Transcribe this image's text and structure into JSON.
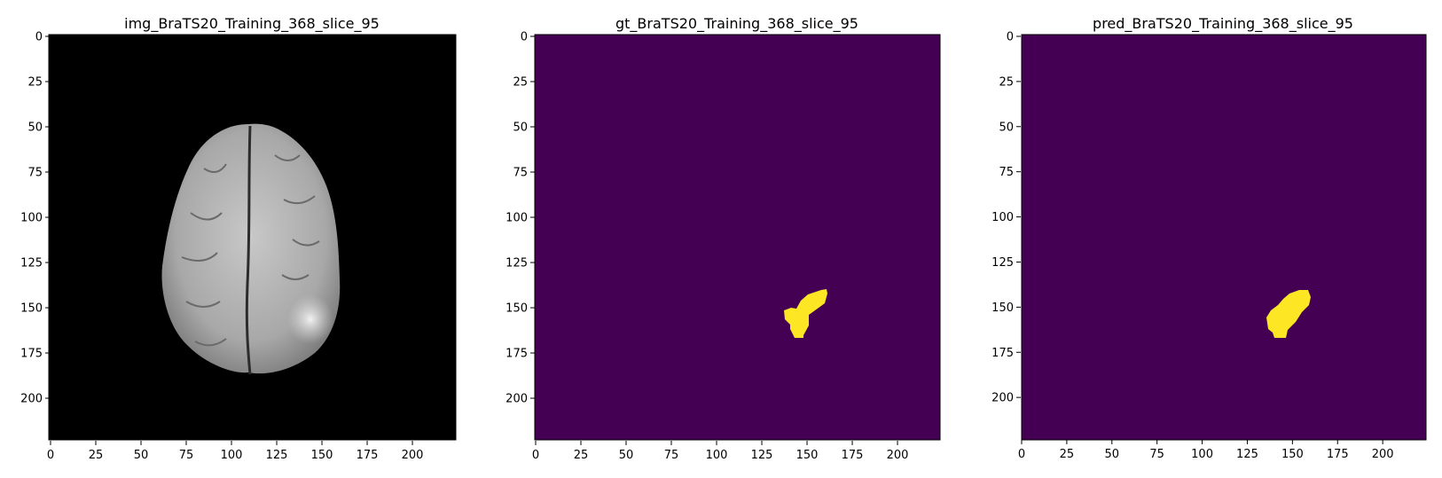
{
  "panels": [
    {
      "title": "img_BraTS20_Training_368_slice_95",
      "kind": "mri-image",
      "background_color": "#000000",
      "foreground_color": "#bdbdbd"
    },
    {
      "title": "gt_BraTS20_Training_368_slice_95",
      "kind": "segmentation-mask",
      "background_color": "#440154",
      "foreground_color": "#fde725"
    },
    {
      "title": "pred_BraTS20_Training_368_slice_95",
      "kind": "segmentation-mask",
      "background_color": "#440154",
      "foreground_color": "#fde725"
    }
  ],
  "axes": {
    "extent": [
      0,
      224
    ],
    "x_ticks": [
      "0",
      "25",
      "50",
      "75",
      "100",
      "125",
      "150",
      "175",
      "200"
    ],
    "y_ticks": [
      "0",
      "25",
      "50",
      "75",
      "100",
      "125",
      "150",
      "175",
      "200"
    ]
  }
}
